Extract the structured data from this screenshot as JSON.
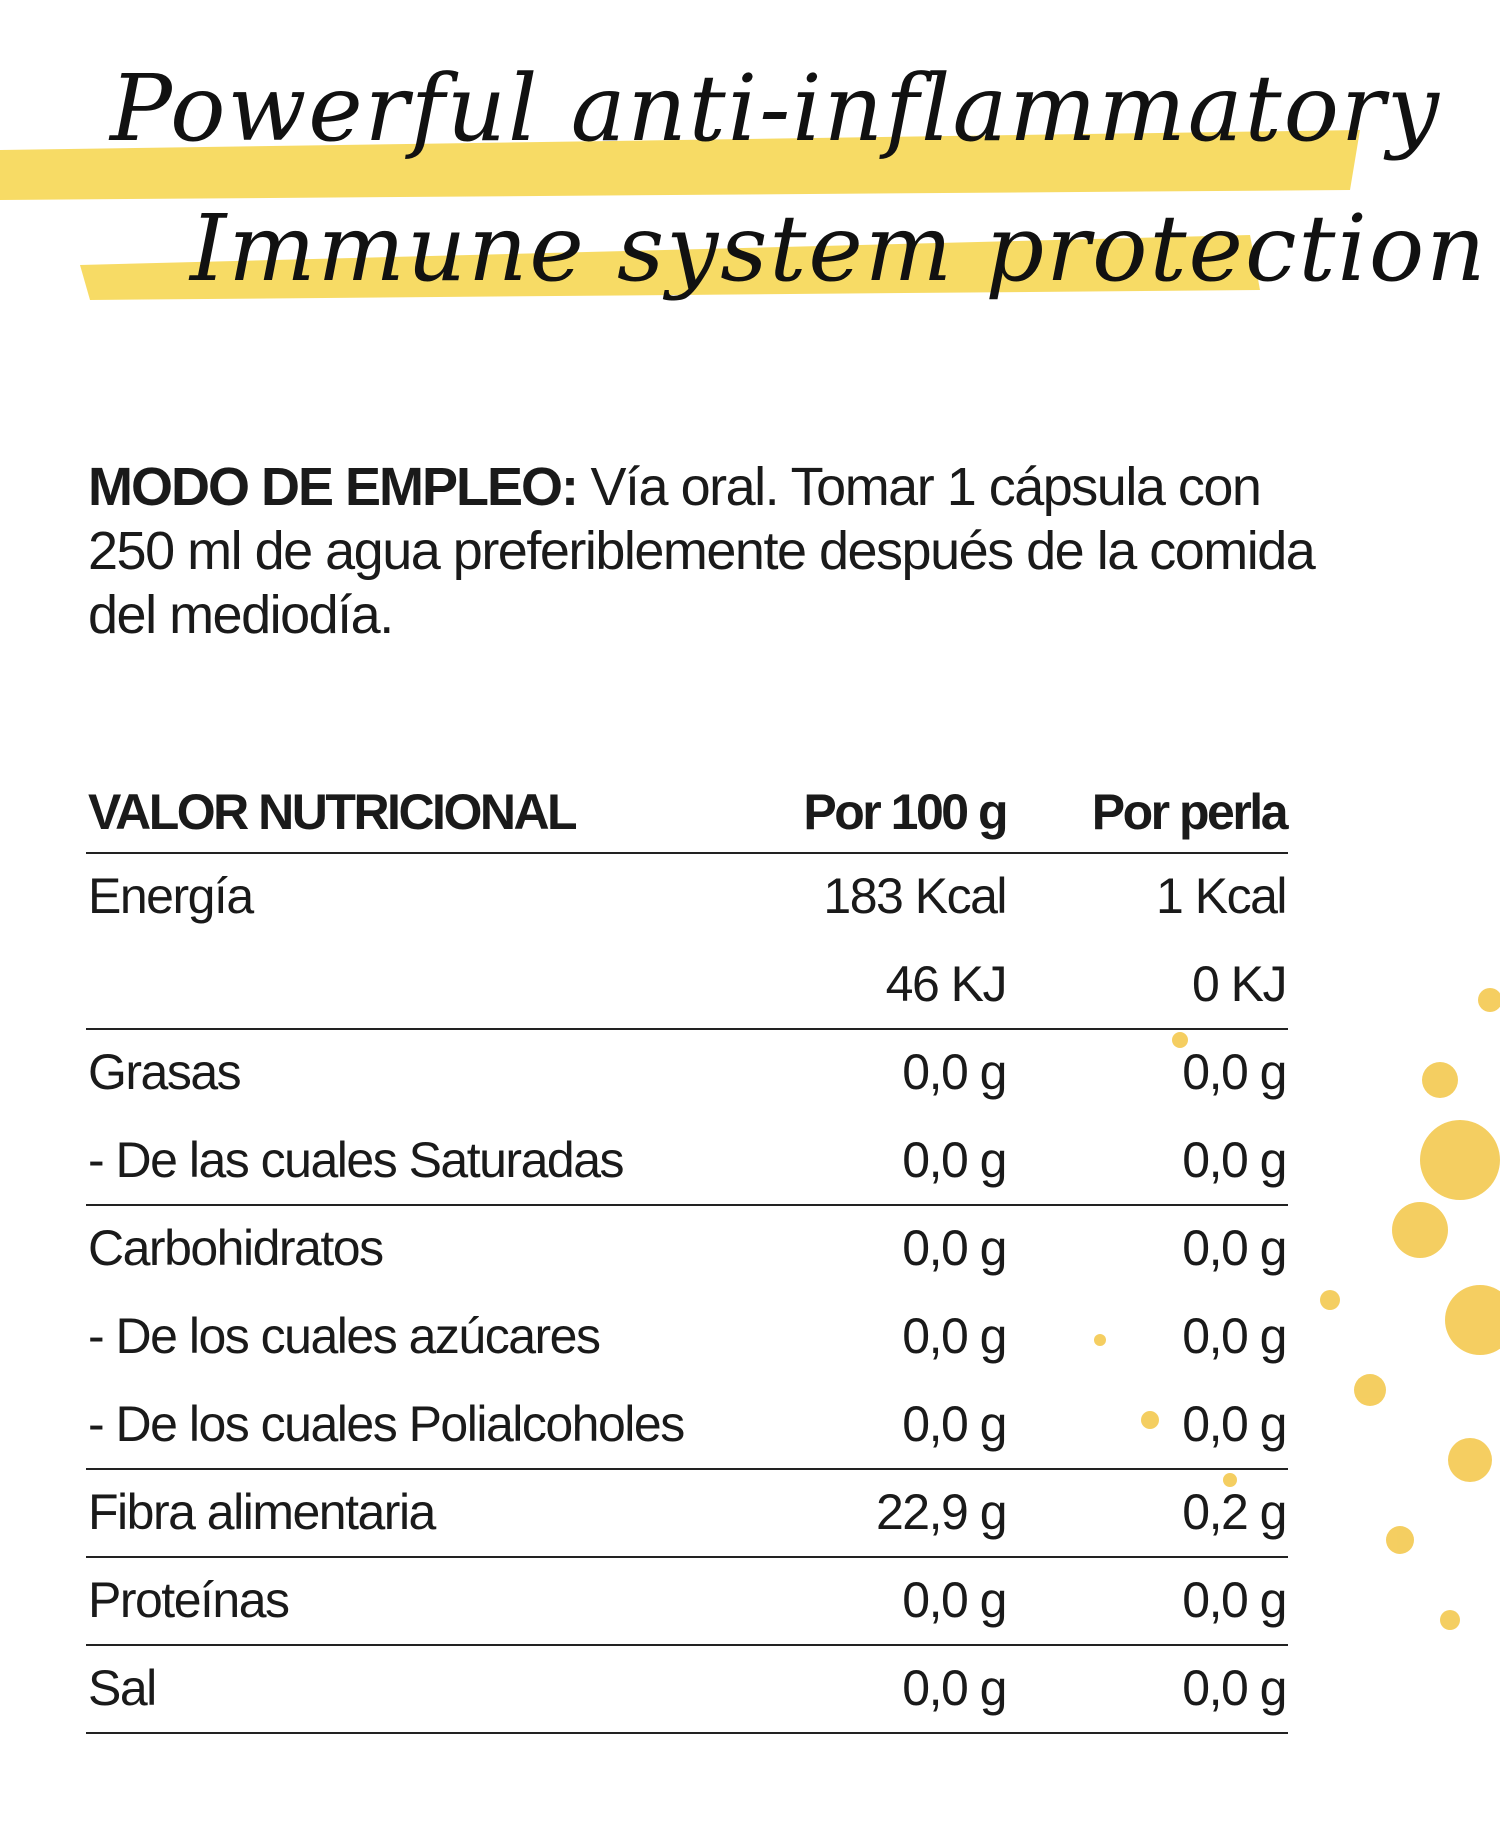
{
  "header": {
    "lines": [
      "Powerful anti-inflammatory",
      "Immune system protection"
    ]
  },
  "usage": {
    "label": "MODO DE EMPLEO:",
    "text": "Vía oral. Tomar 1 cápsula con 250 ml de agua preferiblemente después de la comida del mediodía."
  },
  "table": {
    "header": [
      "VALOR NUTRICIONAL",
      "Por 100 g",
      "Por perla"
    ],
    "groups": [
      [
        {
          "label": "Energía",
          "per_100g": "183 Kcal",
          "per_perla": "1 Kcal"
        },
        {
          "per_100g": "46 KJ",
          "per_perla": "0 KJ"
        }
      ],
      [
        {
          "label": "Grasas",
          "per_100g": "0,0 g",
          "per_perla": "0,0 g"
        },
        {
          "label": "- De las cuales Saturadas",
          "per_100g": "0,0 g",
          "per_perla": "0,0 g"
        }
      ],
      [
        {
          "label": "Carbohidratos",
          "per_100g": "0,0 g",
          "per_perla": "0,0 g"
        },
        {
          "label": "- De los cuales azúcares",
          "per_100g": "0,0 g",
          "per_perla": "0,0 g"
        },
        {
          "label": "- De los cuales Polialcoholes",
          "per_100g": "0,0 g",
          "per_perla": "0,0 g"
        }
      ],
      [
        {
          "label": "Fibra alimentaria",
          "per_100g": "22,9 g",
          "per_perla": "0,2 g"
        }
      ],
      [
        {
          "label": "Proteínas",
          "per_100g": "0,0 g",
          "per_perla": "0,0 g"
        }
      ],
      [
        {
          "label": "Sal",
          "per_100g": "0,0 g",
          "per_perla": "0,0 g"
        }
      ]
    ]
  }
}
